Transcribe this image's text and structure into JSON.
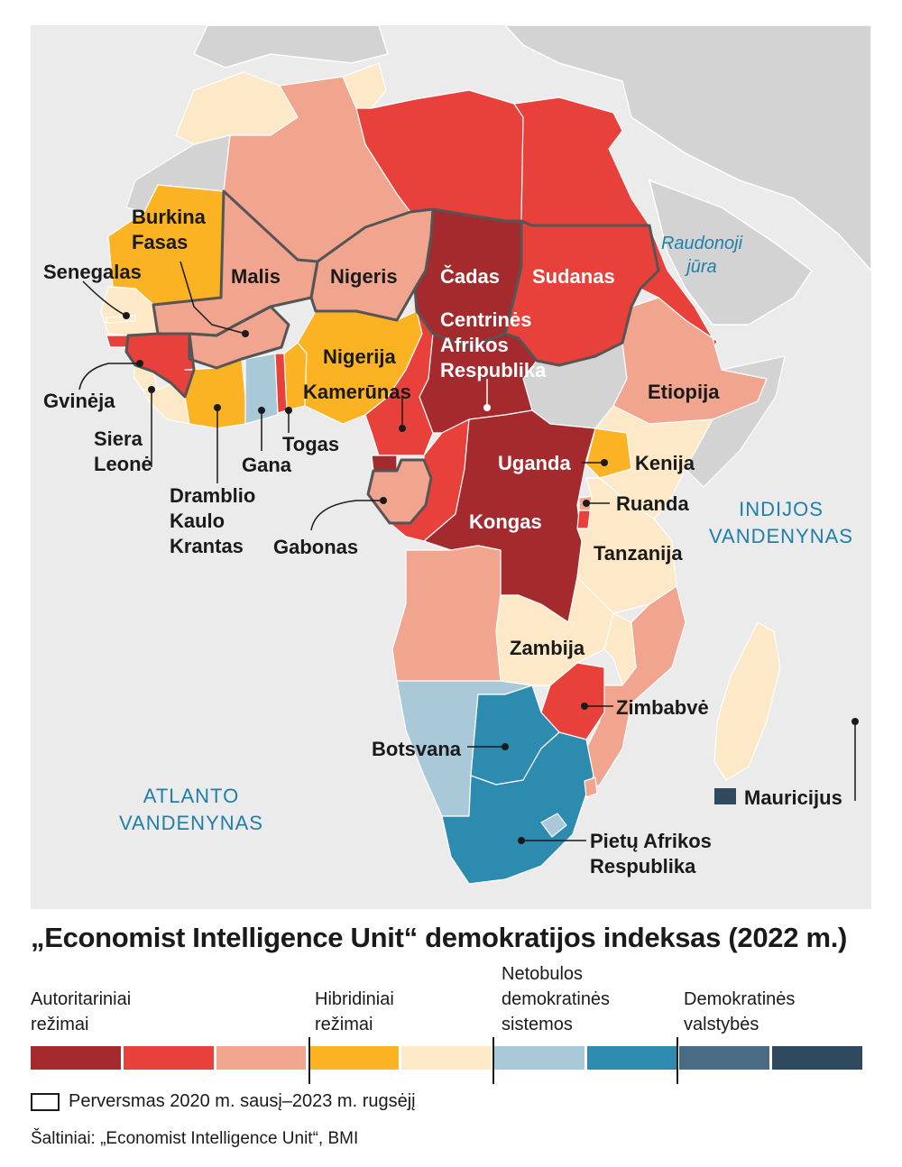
{
  "colors": {
    "authoritarian_dark": "#a52a2e",
    "authoritarian": "#e8403a",
    "authoritarian_light": "#f2a58e",
    "hybrid": "#fbb323",
    "hybrid_light": "#fde9c7",
    "flawed_light": "#a9c9d9",
    "flawed": "#2e8bb0",
    "democracy": "#4a6b86",
    "democracy_dark": "#2f4a5e",
    "land_gray": "#d3d3d3",
    "sea": "#ebebeb",
    "sea_label": "#1f7fa8"
  },
  "map": {
    "countries": {
      "senegalas": "Senegalas",
      "burkina": "Burkina\nFasas",
      "malis": "Malis",
      "nigeris": "Nigeris",
      "cadas": "Čadas",
      "sudanas": "Sudanas",
      "car": "Centrinės\nAfrikos\nRespublika",
      "nigerija": "Nigerija",
      "kamerunas": "Kamerūnas",
      "gvineja": "Gvinėja",
      "siera": "Siera\nLeonė",
      "gana": "Gana",
      "togas": "Togas",
      "dramblio": "Dramblio\nKaulo\nKrantas",
      "gabonas": "Gabonas",
      "etiopija": "Etiopija",
      "uganda": "Uganda",
      "kenija": "Kenija",
      "ruanda": "Ruanda",
      "kongas": "Kongas",
      "tanzanija": "Tanzanija",
      "zambija": "Zambija",
      "zimbabve": "Zimbabvė",
      "botsvana": "Botsvana",
      "par": "Pietų Afrikos\nRespublika",
      "mauricijus": "Mauricijus"
    },
    "seas": {
      "raudonoji": "Raudonoji\njūra",
      "indijos": "INDIJOS\nVANDENYNAS",
      "atlanto": "ATLANTO\nVANDENYNAS"
    }
  },
  "legend": {
    "title": "„Economist Intelligence Unit“ demokratijos indeksas (2022 m.)",
    "categories": [
      "Autoritariniai\nrežimai",
      "Hibridiniai\nrežimai",
      "Netobulos\ndemokratinės\nsistemos",
      "Demokratinės\nvalstybės"
    ],
    "coup_label": "Perversmas 2020 m. sausį–2023 m. rugsėjį",
    "source": "Šaltiniai: „Economist Intelligence Unit“, BMI"
  }
}
